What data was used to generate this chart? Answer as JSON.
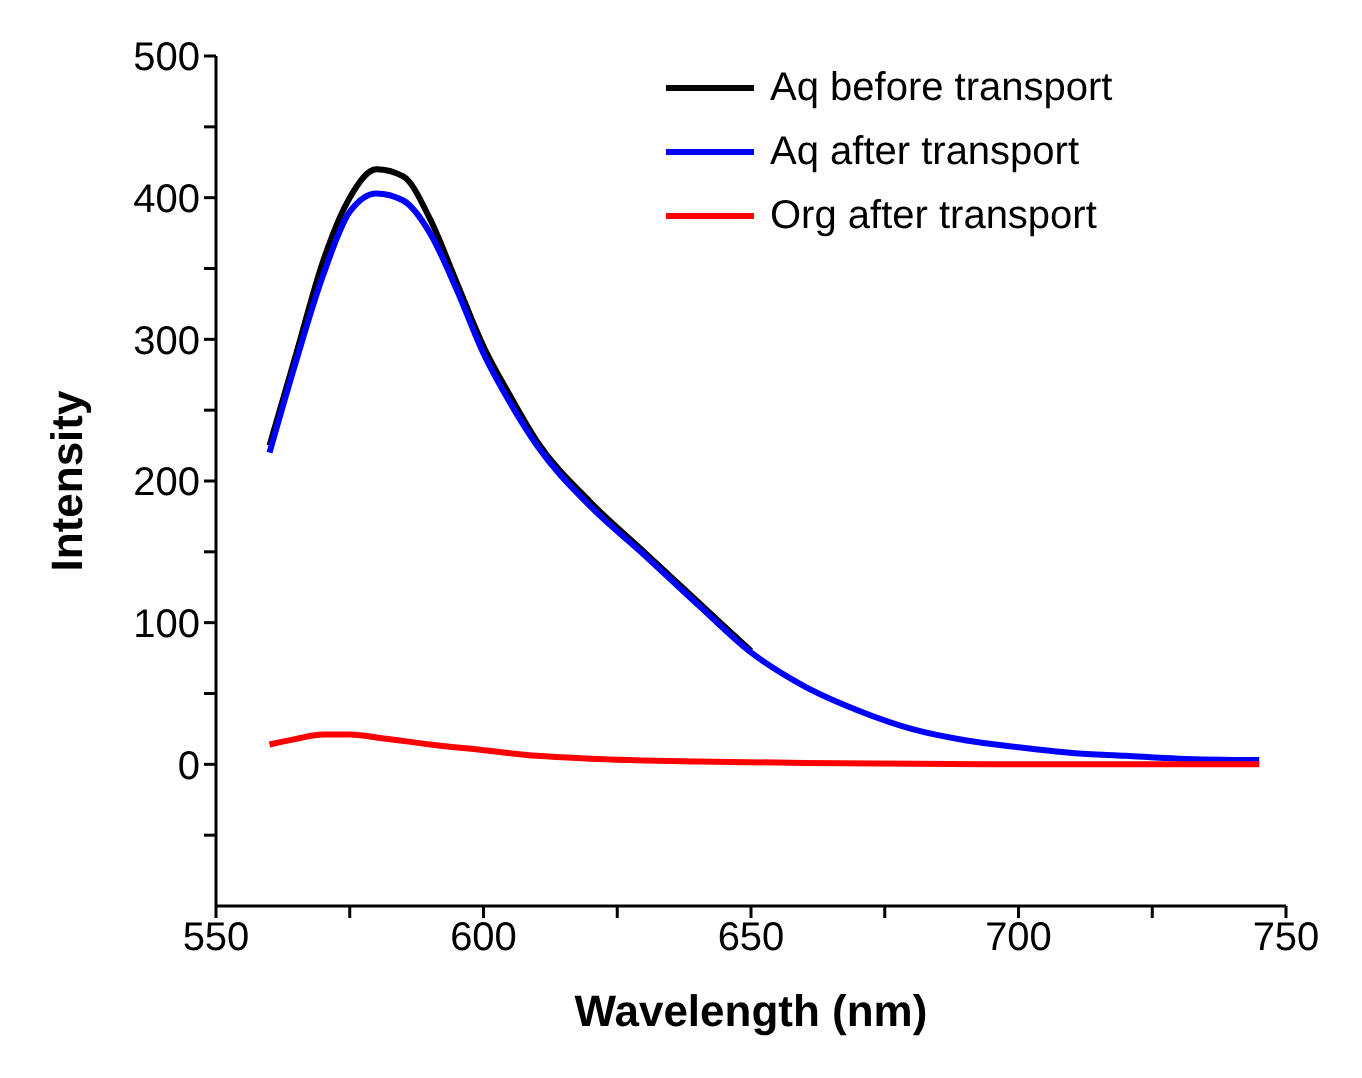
{
  "chart_data": {
    "type": "line",
    "xlabel": "Wavelength (nm)",
    "ylabel": "Intensity",
    "xlim": [
      550,
      750
    ],
    "xticks": [
      550,
      {
        "value": 575,
        "label": null
      },
      600,
      {
        "value": 625,
        "label": null
      },
      650,
      {
        "value": 675,
        "label": null
      },
      700,
      {
        "value": 725,
        "label": null
      },
      750
    ],
    "ylim": [
      -100,
      500
    ],
    "yticks": [
      {
        "value": -50,
        "label": null
      },
      0,
      {
        "value": 50,
        "label": null
      },
      100,
      {
        "value": 150,
        "label": null
      },
      200,
      {
        "value": 250,
        "label": null
      },
      300,
      {
        "value": 350,
        "label": null
      },
      400,
      {
        "value": 450,
        "label": null
      },
      500
    ],
    "grid": false,
    "legend": "top right",
    "marker": "none",
    "line_style": "solid",
    "series": [
      {
        "name": "Aq before transport",
        "color": "#000000",
        "x": [
          560,
          565,
          570,
          575,
          580,
          585,
          590,
          595,
          600,
          605,
          610,
          620,
          630,
          640,
          650
        ],
        "values": [
          225,
          290,
          355,
          400,
          420,
          415,
          385,
          340,
          295,
          260,
          228,
          185,
          150,
          115,
          80
        ]
      },
      {
        "name": "Aq after transport",
        "color": "#0000ff",
        "x": [
          560,
          565,
          570,
          575,
          580,
          585,
          590,
          595,
          600,
          605,
          610,
          620,
          630,
          640,
          650,
          660,
          670,
          680,
          690,
          700,
          710,
          720,
          730,
          745
        ],
        "values": [
          220,
          285,
          345,
          390,
          403,
          398,
          375,
          335,
          290,
          255,
          225,
          182,
          148,
          113,
          79,
          55,
          38,
          25,
          17,
          12,
          8,
          6,
          4,
          3
        ]
      },
      {
        "name": "Org after transport",
        "color": "#ff0000",
        "x": [
          560,
          565,
          570,
          575,
          580,
          590,
          600,
          610,
          620,
          640,
          660,
          700,
          745
        ],
        "values": [
          14,
          18,
          21,
          21,
          19,
          14,
          10,
          6,
          4,
          2,
          1,
          0,
          0
        ]
      }
    ]
  }
}
